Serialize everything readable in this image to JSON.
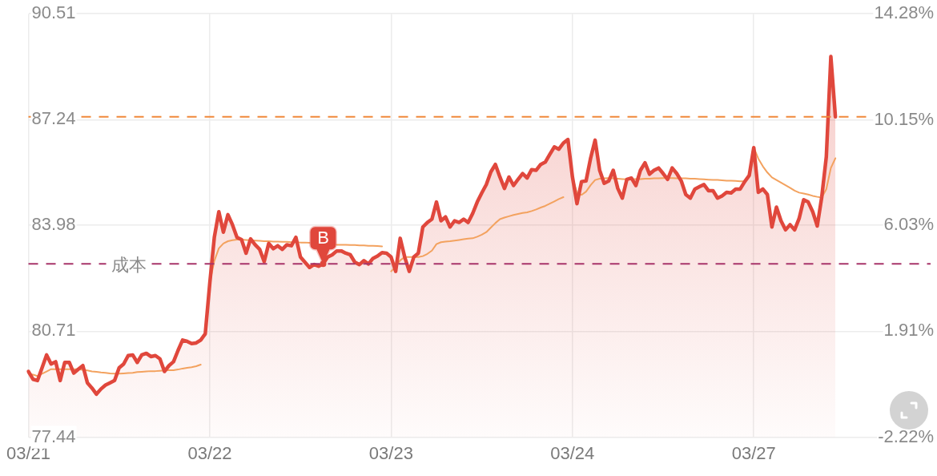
{
  "chart_data": {
    "type": "area",
    "categories": [
      "03/21",
      null,
      null,
      null,
      null,
      null,
      null,
      null,
      null,
      null,
      null,
      null,
      null,
      null,
      null,
      null,
      null,
      null,
      null,
      null,
      null,
      null,
      null,
      null,
      null,
      null,
      null,
      null,
      null,
      null,
      null,
      null,
      null,
      null,
      null,
      null,
      null,
      null,
      null,
      null,
      "03/22",
      null,
      null,
      null,
      null,
      null,
      null,
      null,
      null,
      null,
      null,
      null,
      null,
      null,
      null,
      null,
      null,
      null,
      null,
      null,
      null,
      null,
      null,
      null,
      null,
      null,
      null,
      null,
      null,
      null,
      null,
      null,
      null,
      null,
      null,
      null,
      null,
      null,
      null,
      null,
      "03/23",
      null,
      null,
      null,
      null,
      null,
      null,
      null,
      null,
      null,
      null,
      null,
      null,
      null,
      null,
      null,
      null,
      null,
      null,
      null,
      null,
      null,
      null,
      null,
      null,
      null,
      null,
      null,
      null,
      null,
      null,
      null,
      null,
      null,
      null,
      null,
      null,
      null,
      null,
      null,
      "03/24",
      null,
      null,
      null,
      null,
      null,
      null,
      null,
      null,
      null,
      null,
      null,
      null,
      null,
      null,
      null,
      null,
      null,
      null,
      null,
      null,
      null,
      null,
      null,
      null,
      null,
      null,
      null,
      null,
      null,
      null,
      null,
      null,
      null,
      null,
      null,
      null,
      null,
      null,
      null,
      "03/27",
      null,
      null,
      null,
      null,
      null,
      null,
      null,
      null,
      null,
      null,
      null,
      null,
      null,
      null,
      null,
      null,
      null,
      null,
      null,
      null,
      null,
      null,
      null,
      null,
      null,
      null,
      null,
      null,
      null,
      null,
      null,
      null,
      null,
      null,
      null,
      null,
      null,
      null,
      null
    ],
    "series": [
      {
        "color": "#e0473c",
        "values": [
          79.47,
          79.23,
          79.19,
          79.58,
          79.98,
          79.7,
          79.77,
          79.19,
          79.75,
          79.75,
          79.42,
          79.54,
          79.65,
          79.12,
          78.96,
          78.77,
          78.93,
          79.05,
          79.12,
          79.19,
          79.58,
          79.7,
          79.96,
          79.98,
          79.75,
          79.98,
          80.03,
          79.93,
          79.96,
          79.86,
          79.47,
          79.65,
          79.77,
          80.12,
          80.44,
          80.4,
          80.33,
          80.35,
          80.44,
          80.63,
          82.19,
          83.61,
          84.4,
          83.77,
          84.31,
          84.0,
          83.61,
          83.54,
          83.12,
          83.56,
          83.38,
          83.24,
          82.86,
          83.42,
          83.26,
          83.35,
          83.24,
          83.38,
          83.35,
          83.61,
          83.0,
          82.84,
          82.68,
          82.77,
          82.72,
          82.79,
          83.0,
          83.07,
          83.19,
          83.19,
          83.12,
          83.07,
          82.84,
          82.77,
          82.89,
          82.79,
          82.96,
          83.03,
          83.14,
          83.12,
          83.0,
          82.56,
          83.58,
          83.0,
          82.56,
          83.0,
          83.12,
          83.93,
          84.07,
          84.17,
          84.7,
          84.12,
          84.24,
          83.93,
          84.12,
          84.07,
          84.17,
          84.07,
          84.35,
          84.7,
          84.98,
          85.24,
          85.63,
          85.86,
          85.47,
          85.12,
          85.47,
          85.21,
          85.4,
          85.58,
          85.44,
          85.7,
          85.68,
          85.86,
          85.93,
          86.17,
          86.4,
          86.33,
          86.52,
          86.63,
          85.47,
          84.65,
          85.33,
          85.35,
          86.05,
          86.61,
          85.68,
          85.28,
          85.35,
          85.68,
          85.12,
          84.82,
          85.4,
          85.44,
          85.21,
          85.68,
          85.91,
          85.56,
          85.68,
          85.75,
          85.58,
          85.4,
          85.75,
          85.58,
          85.35,
          84.93,
          84.82,
          85.1,
          85.17,
          85.24,
          85.05,
          85.05,
          84.82,
          84.89,
          85.0,
          84.98,
          85.1,
          85.1,
          85.33,
          85.52,
          86.38,
          85.0,
          85.1,
          84.93,
          83.93,
          84.54,
          84.12,
          83.84,
          84.0,
          83.84,
          84.19,
          84.77,
          84.7,
          84.4,
          83.96,
          84.86,
          86.1,
          89.19,
          87.33,
          null,
          null,
          null,
          null,
          null,
          null,
          null,
          null,
          null,
          null,
          null,
          null,
          null,
          null,
          null,
          null,
          null,
          null,
          null,
          null,
          null
        ]
      },
      {
        "type": "line",
        "color": "#f3a25f",
        "values": [
          79.4,
          79.37,
          79.33,
          79.4,
          79.47,
          79.54,
          79.54,
          79.54,
          79.54,
          79.54,
          79.54,
          79.54,
          79.52,
          79.5,
          79.47,
          79.46,
          79.44,
          79.43,
          79.41,
          79.4,
          79.4,
          79.41,
          79.42,
          79.43,
          79.45,
          79.46,
          79.47,
          79.48,
          79.48,
          79.49,
          79.5,
          79.51,
          79.51,
          79.53,
          79.56,
          79.58,
          79.6,
          79.63,
          79.68,
          null,
          82.21,
          82.88,
          83.27,
          83.42,
          83.49,
          83.52,
          83.54,
          83.54,
          83.53,
          83.52,
          83.51,
          83.5,
          83.49,
          83.49,
          83.48,
          83.48,
          83.47,
          83.47,
          83.46,
          83.46,
          83.45,
          83.45,
          83.44,
          null,
          null,
          null,
          null,
          null,
          83.38,
          83.38,
          83.38,
          83.37,
          83.37,
          83.36,
          83.36,
          83.35,
          83.35,
          83.34,
          83.33,
          null,
          82.56,
          82.7,
          82.9,
          83.0,
          83.0,
          83.0,
          83.0,
          83.03,
          83.1,
          83.2,
          83.4,
          83.46,
          83.48,
          83.49,
          83.51,
          83.53,
          83.55,
          83.57,
          83.58,
          83.63,
          83.69,
          83.77,
          83.91,
          84.05,
          84.17,
          84.22,
          84.26,
          84.3,
          84.33,
          84.36,
          84.38,
          84.42,
          84.47,
          84.53,
          84.58,
          84.65,
          84.72,
          84.79,
          84.85,
          null,
          85.47,
          84.98,
          84.92,
          85.02,
          85.22,
          85.38,
          85.42,
          85.43,
          85.44,
          85.43,
          85.42,
          85.41,
          85.4,
          85.4,
          85.41,
          85.41,
          85.42,
          85.42,
          85.43,
          85.43,
          85.44,
          85.44,
          85.44,
          85.43,
          85.43,
          85.43,
          85.42,
          85.42,
          85.41,
          85.4,
          85.39,
          85.38,
          85.38,
          85.37,
          85.36,
          85.36,
          85.35,
          85.34,
          85.34,
          null,
          86.38,
          86.04,
          85.8,
          85.61,
          85.46,
          85.38,
          85.3,
          85.22,
          85.14,
          85.05,
          84.99,
          84.96,
          84.93,
          84.89,
          84.86,
          84.84,
          85.1,
          85.75,
          86.05,
          null,
          null,
          null,
          null,
          null,
          null,
          null,
          null,
          null,
          null,
          null,
          null,
          null,
          null,
          null,
          null,
          null,
          null,
          null,
          null,
          null
        ]
      },
      {
        "type": "scatter",
        "name": "B",
        "color": "#e0473c",
        "values": [
          null,
          null,
          null,
          null,
          null,
          null,
          null,
          null,
          null,
          null,
          null,
          null,
          null,
          null,
          null,
          null,
          null,
          null,
          null,
          null,
          null,
          null,
          null,
          null,
          null,
          null,
          null,
          null,
          null,
          null,
          null,
          null,
          null,
          null,
          null,
          null,
          null,
          null,
          null,
          null,
          null,
          null,
          null,
          null,
          null,
          null,
          null,
          null,
          null,
          null,
          null,
          null,
          null,
          null,
          null,
          null,
          null,
          null,
          null,
          null,
          null,
          null,
          null,
          null,
          null,
          82.79,
          null,
          null,
          null,
          null,
          null,
          null,
          null,
          null,
          null,
          null,
          null,
          null,
          null,
          null,
          null,
          null,
          null,
          null,
          null,
          null,
          null,
          null,
          null,
          null,
          null,
          null,
          null,
          null,
          null,
          null,
          null,
          null,
          null,
          null,
          null,
          null,
          null,
          null,
          null,
          null,
          null,
          null,
          null,
          null,
          null,
          null,
          null,
          null,
          null,
          null,
          null,
          null,
          null,
          null,
          null,
          null,
          null,
          null,
          null,
          null,
          null,
          null,
          null,
          null,
          null,
          null,
          null,
          null,
          null,
          null,
          null,
          null,
          null,
          null,
          null,
          null,
          null,
          null,
          null,
          null,
          null,
          null,
          null,
          null,
          null,
          null,
          null,
          null,
          null,
          null,
          null,
          null,
          null,
          null,
          null,
          null,
          null,
          null,
          null,
          null,
          null,
          null,
          null,
          null,
          null,
          null,
          null,
          null,
          null,
          null,
          null,
          null,
          null,
          null,
          null,
          null,
          null,
          null,
          null,
          null,
          null,
          null,
          null,
          null,
          null,
          null,
          null,
          null,
          null,
          null,
          null,
          null,
          null,
          null
        ]
      }
    ],
    "ylim": [
      77.44,
      90.51
    ],
    "yticks": [
      77.44,
      80.71,
      83.98,
      87.24,
      90.51
    ],
    "y2lim": [
      -2.22,
      14.28
    ],
    "y2ticks": [
      {
        "value": -2.22,
        "label": "-2.22%"
      },
      {
        "value": 1.91,
        "label": "1.91%"
      },
      {
        "value": 6.03,
        "label": "6.03%"
      },
      {
        "value": 10.15,
        "label": "10.15%"
      },
      {
        "value": 14.28,
        "label": "14.28%"
      }
    ],
    "grid": true,
    "ref_lines": [
      {
        "axis": "y",
        "value": 87.33,
        "color": "#f0893b",
        "line_style": "dashed"
      },
      {
        "axis": "y",
        "value": 82.79,
        "label": "成本",
        "color": "#a8346a",
        "line_style": "dashed"
      }
    ]
  }
}
